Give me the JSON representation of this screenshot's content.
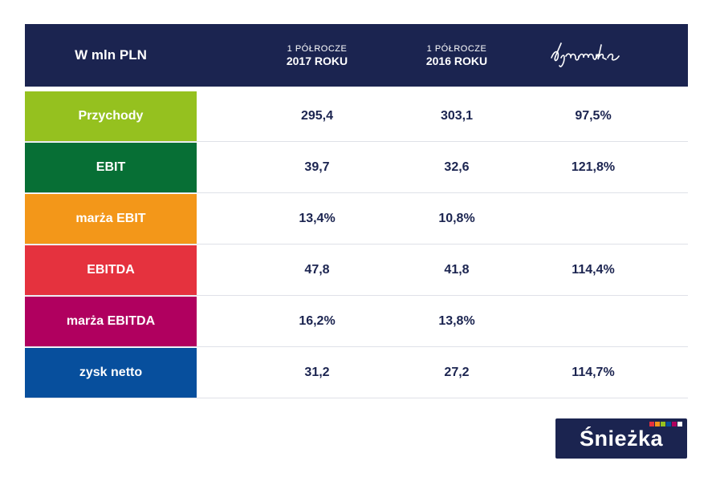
{
  "header": {
    "title": "W mln PLN",
    "col1_small": "1 PÓŁROCZE",
    "col1_big": "2017 ROKU",
    "col2_small": "1 PÓŁROCZE",
    "col2_big": "2016 ROKU",
    "col3_script": "dynamika"
  },
  "chart_data": {
    "type": "table",
    "columns": [
      "W mln PLN",
      "1 PÓŁROCZE 2017 ROKU",
      "1 PÓŁROCZE 2016 ROKU",
      "dynamika"
    ],
    "rows": [
      {
        "label": "Przychody",
        "y2017": "295,4",
        "y2016": "303,1",
        "dyn": "97,5%",
        "color": "#95c11f"
      },
      {
        "label": "EBIT",
        "y2017": "39,7",
        "y2016": "32,6",
        "dyn": "121,8%",
        "color": "#076f35"
      },
      {
        "label": "marża EBIT",
        "y2017": "13,4%",
        "y2016": "10,8%",
        "dyn": "",
        "color": "#f39719"
      },
      {
        "label": "EBITDA",
        "y2017": "47,8",
        "y2016": "41,8",
        "dyn": "114,4%",
        "color": "#e5323e"
      },
      {
        "label": "marża EBITDA",
        "y2017": "16,2%",
        "y2016": "13,8%",
        "dyn": "",
        "color": "#b0005f"
      },
      {
        "label": "zysk netto",
        "y2017": "31,2",
        "y2016": "27,2",
        "dyn": "114,7%",
        "color": "#074f9d"
      }
    ]
  },
  "logo": {
    "text": "Śnieżka",
    "stripe_colors": [
      "#e5323e",
      "#f39719",
      "#95c11f",
      "#074f9d",
      "#b0005f",
      "#ffffff"
    ]
  },
  "colors": {
    "header_bg": "#1b2450",
    "value_text": "#1b2450"
  }
}
